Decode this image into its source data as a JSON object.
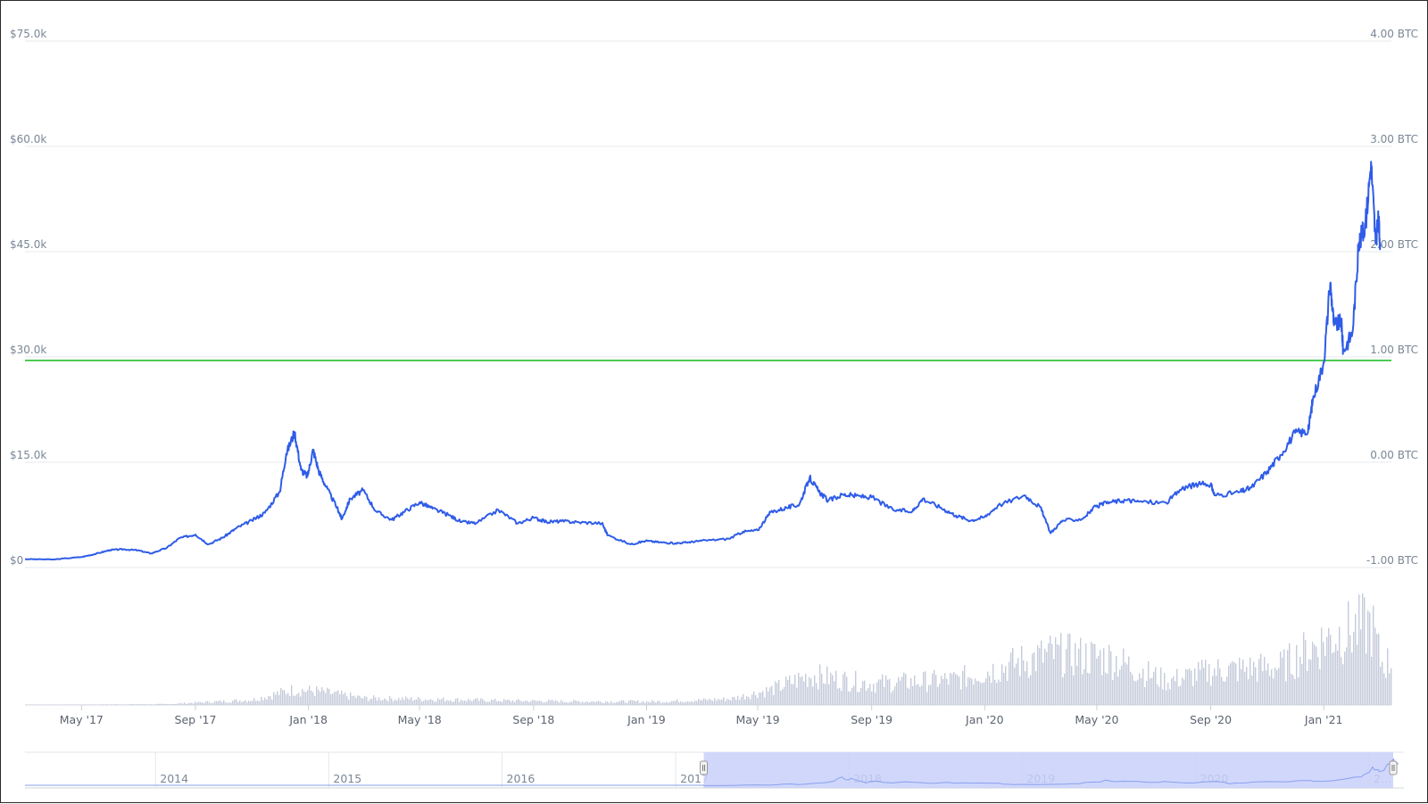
{
  "chart_data": {
    "type": "line",
    "title": "",
    "xlabel": "",
    "ylabel": "",
    "y_axis_left": {
      "ticks": [
        "$0",
        "$15.0k",
        "$30.0k",
        "$45.0k",
        "$60.0k",
        "$75.0k"
      ],
      "range": [
        0,
        75000
      ]
    },
    "y_axis_right": {
      "ticks": [
        "-1.00 BTC",
        "0.00 BTC",
        "1.00 BTC",
        "2.00 BTC",
        "3.00 BTC",
        "4.00 BTC"
      ],
      "range": [
        -1,
        4
      ]
    },
    "x_axis": {
      "range": [
        "2017-03-01",
        "2021-03-15"
      ],
      "ticks": [
        {
          "label": "May '17",
          "date": "2017-05-01"
        },
        {
          "label": "Sep '17",
          "date": "2017-09-01"
        },
        {
          "label": "Jan '18",
          "date": "2018-01-01"
        },
        {
          "label": "May '18",
          "date": "2018-05-01"
        },
        {
          "label": "Sep '18",
          "date": "2018-09-01"
        },
        {
          "label": "Jan '19",
          "date": "2019-01-01"
        },
        {
          "label": "May '19",
          "date": "2019-05-01"
        },
        {
          "label": "Sep '19",
          "date": "2019-09-01"
        },
        {
          "label": "Jan '20",
          "date": "2020-01-01"
        },
        {
          "label": "May '20",
          "date": "2020-05-01"
        },
        {
          "label": "Sep '20",
          "date": "2020-09-01"
        },
        {
          "label": "Jan '21",
          "date": "2021-01-01"
        }
      ]
    },
    "reference_line": {
      "value": 29500,
      "color": "#22c02a"
    },
    "grid": true,
    "legend": "none",
    "series": [
      {
        "color": "#2f5ce8",
        "points": [
          [
            "2017-03-01",
            1200
          ],
          [
            "2017-04-01",
            1150
          ],
          [
            "2017-05-01",
            1500
          ],
          [
            "2017-05-15",
            1900
          ],
          [
            "2017-06-01",
            2500
          ],
          [
            "2017-06-15",
            2600
          ],
          [
            "2017-07-01",
            2450
          ],
          [
            "2017-07-15",
            2000
          ],
          [
            "2017-08-01",
            2800
          ],
          [
            "2017-08-15",
            4200
          ],
          [
            "2017-09-01",
            4700
          ],
          [
            "2017-09-15",
            3300
          ],
          [
            "2017-10-01",
            4300
          ],
          [
            "2017-10-15",
            5600
          ],
          [
            "2017-11-01",
            6700
          ],
          [
            "2017-11-15",
            7800
          ],
          [
            "2017-12-01",
            10800
          ],
          [
            "2017-12-08",
            16200
          ],
          [
            "2017-12-17",
            19300
          ],
          [
            "2017-12-24",
            13900
          ],
          [
            "2017-12-31",
            13000
          ],
          [
            "2018-01-06",
            16800
          ],
          [
            "2018-01-12",
            13800
          ],
          [
            "2018-01-20",
            11500
          ],
          [
            "2018-02-01",
            8500
          ],
          [
            "2018-02-06",
            6900
          ],
          [
            "2018-02-15",
            9800
          ],
          [
            "2018-03-01",
            11000
          ],
          [
            "2018-03-15",
            8000
          ],
          [
            "2018-04-01",
            6800
          ],
          [
            "2018-04-15",
            8000
          ],
          [
            "2018-05-01",
            9300
          ],
          [
            "2018-05-15",
            8400
          ],
          [
            "2018-06-01",
            7500
          ],
          [
            "2018-06-15",
            6500
          ],
          [
            "2018-07-01",
            6300
          ],
          [
            "2018-07-25",
            8200
          ],
          [
            "2018-08-15",
            6300
          ],
          [
            "2018-09-01",
            7100
          ],
          [
            "2018-09-15",
            6500
          ],
          [
            "2018-10-01",
            6600
          ],
          [
            "2018-10-20",
            6450
          ],
          [
            "2018-11-14",
            6300
          ],
          [
            "2018-11-20",
            4600
          ],
          [
            "2018-12-15",
            3300
          ],
          [
            "2018-12-31",
            3800
          ],
          [
            "2019-01-15",
            3600
          ],
          [
            "2019-02-01",
            3450
          ],
          [
            "2019-02-15",
            3600
          ],
          [
            "2019-03-01",
            3800
          ],
          [
            "2019-03-31",
            4100
          ],
          [
            "2019-04-15",
            5100
          ],
          [
            "2019-05-01",
            5300
          ],
          [
            "2019-05-15",
            7900
          ],
          [
            "2019-06-01",
            8500
          ],
          [
            "2019-06-15",
            9000
          ],
          [
            "2019-06-26",
            12800
          ],
          [
            "2019-07-05",
            11000
          ],
          [
            "2019-07-16",
            9500
          ],
          [
            "2019-08-01",
            10400
          ],
          [
            "2019-08-15",
            10200
          ],
          [
            "2019-09-01",
            10000
          ],
          [
            "2019-09-24",
            8200
          ],
          [
            "2019-10-15",
            8000
          ],
          [
            "2019-10-26",
            9800
          ],
          [
            "2019-11-15",
            8500
          ],
          [
            "2019-12-01",
            7400
          ],
          [
            "2019-12-17",
            6700
          ],
          [
            "2020-01-01",
            7200
          ],
          [
            "2020-01-15",
            8800
          ],
          [
            "2020-02-13",
            10300
          ],
          [
            "2020-03-01",
            8600
          ],
          [
            "2020-03-12",
            4900
          ],
          [
            "2020-03-25",
            6700
          ],
          [
            "2020-04-15",
            6900
          ],
          [
            "2020-04-30",
            8700
          ],
          [
            "2020-05-15",
            9300
          ],
          [
            "2020-06-01",
            9600
          ],
          [
            "2020-06-15",
            9400
          ],
          [
            "2020-07-15",
            9200
          ],
          [
            "2020-08-01",
            11300
          ],
          [
            "2020-08-15",
            11800
          ],
          [
            "2020-09-01",
            11900
          ],
          [
            "2020-09-05",
            10300
          ],
          [
            "2020-10-01",
            10700
          ],
          [
            "2020-10-15",
            11400
          ],
          [
            "2020-11-01",
            13700
          ],
          [
            "2020-11-15",
            16000
          ],
          [
            "2020-12-01",
            19200
          ],
          [
            "2020-12-15",
            19300
          ],
          [
            "2020-12-20",
            23800
          ],
          [
            "2021-01-01",
            29300
          ],
          [
            "2021-01-08",
            40500
          ],
          [
            "2021-01-12",
            34500
          ],
          [
            "2021-01-20",
            35000
          ],
          [
            "2021-01-22",
            30800
          ],
          [
            "2021-02-01",
            33500
          ],
          [
            "2021-02-08",
            46300
          ],
          [
            "2021-02-15",
            48700
          ],
          [
            "2021-02-21",
            57800
          ],
          [
            "2021-02-26",
            46200
          ],
          [
            "2021-03-01",
            49500
          ],
          [
            "2021-03-03",
            46000
          ]
        ]
      }
    ],
    "volume_series": {
      "color": "#c5cbdb",
      "points": [
        [
          "2017-03-01",
          0.002
        ],
        [
          "2017-08-01",
          0.01
        ],
        [
          "2017-11-01",
          0.06
        ],
        [
          "2017-12-15",
          0.18
        ],
        [
          "2018-01-10",
          0.16
        ],
        [
          "2018-03-01",
          0.08
        ],
        [
          "2018-05-01",
          0.07
        ],
        [
          "2018-08-01",
          0.05
        ],
        [
          "2018-11-01",
          0.04
        ],
        [
          "2019-01-15",
          0.04
        ],
        [
          "2019-04-01",
          0.07
        ],
        [
          "2019-05-15",
          0.18
        ],
        [
          "2019-06-26",
          0.35
        ],
        [
          "2019-09-01",
          0.25
        ],
        [
          "2019-12-01",
          0.3
        ],
        [
          "2020-03-12",
          0.6
        ],
        [
          "2020-05-15",
          0.55
        ],
        [
          "2020-07-15",
          0.28
        ],
        [
          "2020-09-01",
          0.4
        ],
        [
          "2020-11-15",
          0.45
        ],
        [
          "2021-01-08",
          0.8
        ],
        [
          "2021-02-21",
          0.95
        ],
        [
          "2021-03-03",
          0.5
        ]
      ]
    },
    "navigator": {
      "labels": [
        "2014",
        "2015",
        "2016",
        "2017",
        "2018",
        "2019",
        "2020",
        "2..."
      ],
      "range": [
        "2013-04-01",
        "2021-03-15"
      ],
      "selected_range": [
        "2017-03-01",
        "2021-03-15"
      ],
      "mask_color": "#c8d0fa"
    }
  }
}
